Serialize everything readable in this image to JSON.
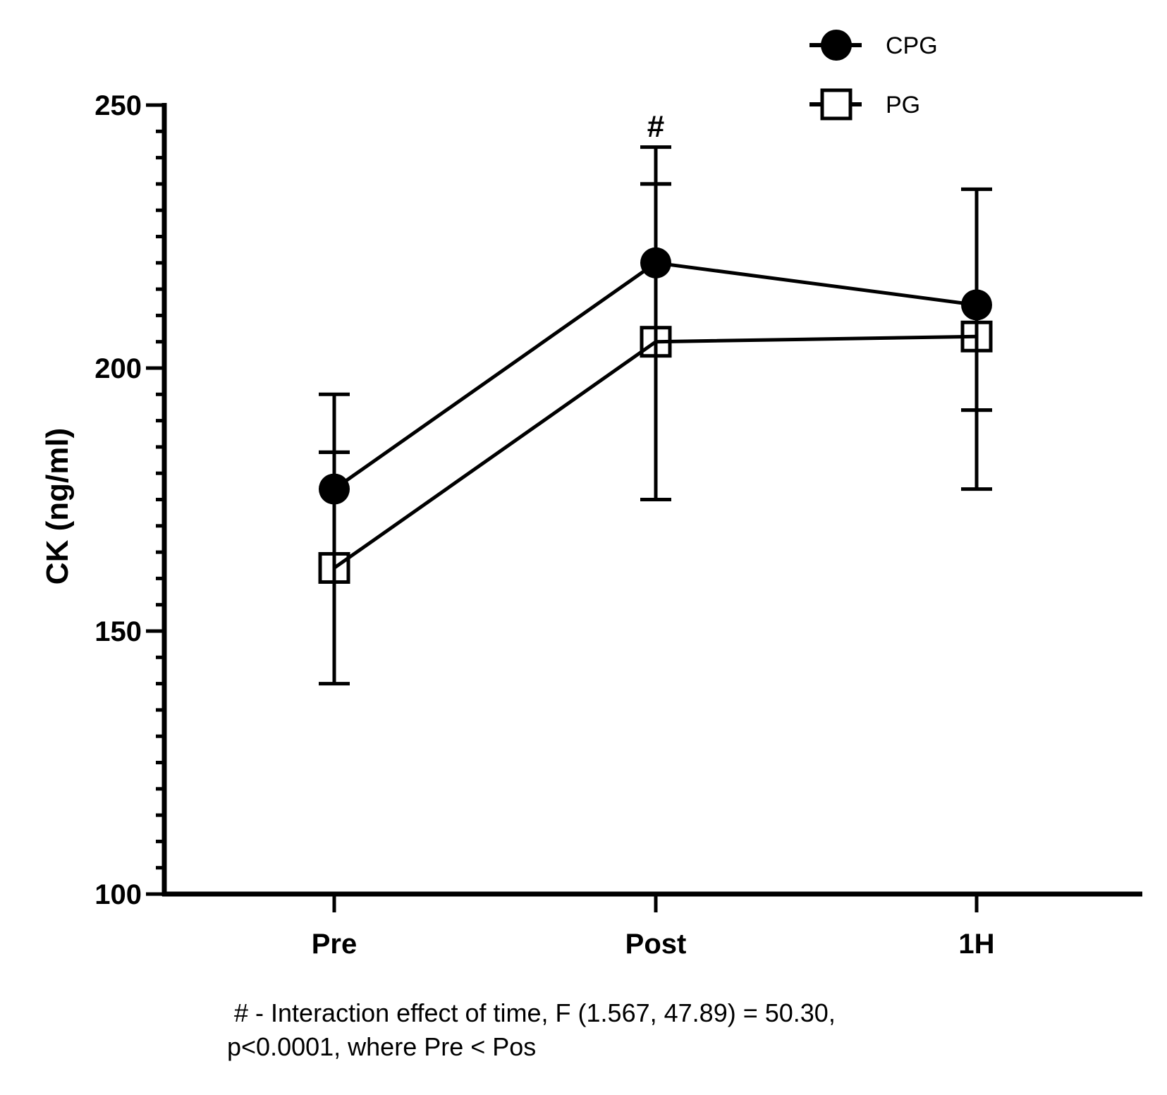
{
  "chart_data": {
    "type": "line",
    "title": "",
    "xlabel": "",
    "ylabel": "CK (ng/ml)",
    "categories": [
      "Pre",
      "Post",
      "1H"
    ],
    "ylim": [
      100,
      250
    ],
    "yticks": [
      100,
      150,
      200,
      250
    ],
    "series": [
      {
        "name": "CPG",
        "marker": "filled-circle",
        "values": [
          177,
          220,
          212
        ],
        "error_low": [
          184,
          235,
          192
        ],
        "error_high": [
          184,
          235,
          192
        ]
      },
      {
        "name": "PG",
        "marker": "open-square",
        "values": [
          162,
          205,
          206
        ],
        "error_low": [
          140,
          175,
          177
        ],
        "error_high": [
          195,
          242,
          234
        ]
      }
    ],
    "annotations": [
      {
        "category": "Post",
        "text": "#"
      }
    ],
    "legend_position": "top-right",
    "grid": false
  },
  "footnote": {
    "line1": " # - Interaction effect of time, F (1.567, 47.89) = 50.30,",
    "line2": "p<0.0001, where Pre < Pos"
  }
}
